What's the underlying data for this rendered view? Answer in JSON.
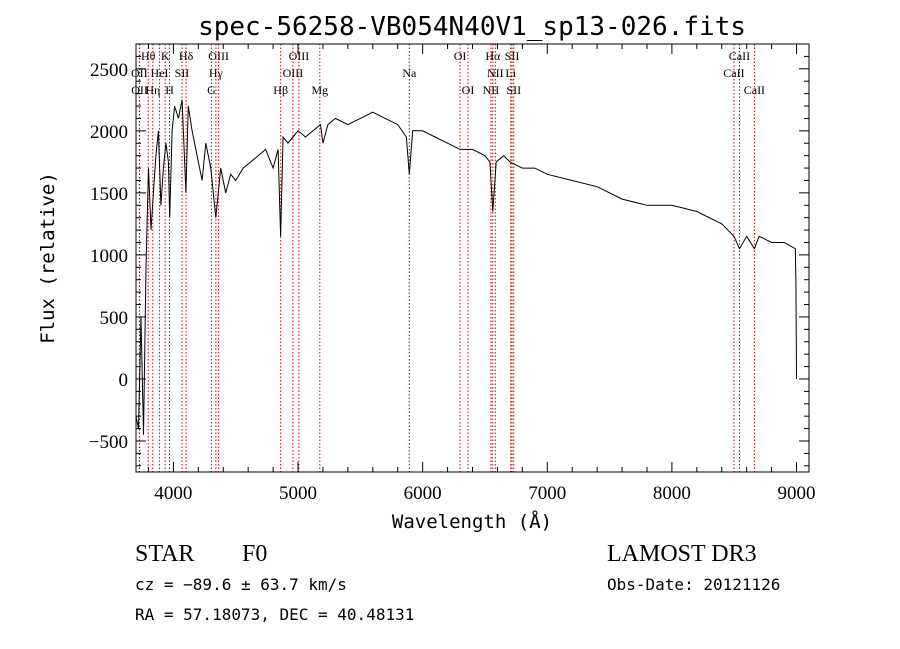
{
  "chart_data": {
    "type": "line",
    "title": "spec-56258-VB054N40V1_sp13-026.fits",
    "xlabel": "Wavelength (Å)",
    "ylabel": "Flux (relative)",
    "xlim": [
      3700,
      9100
    ],
    "ylim": [
      -750,
      2700
    ],
    "xticks": [
      4000,
      5000,
      6000,
      7000,
      8000,
      9000
    ],
    "yticks": [
      -500,
      0,
      500,
      1000,
      1500,
      2000,
      2500
    ],
    "xtick_labels": [
      "4000",
      "5000",
      "6000",
      "7000",
      "8000",
      "9000"
    ],
    "ytick_labels": [
      "−500",
      "0",
      "500",
      "1000",
      "1500",
      "2000",
      "2500"
    ],
    "series": [
      {
        "name": "spectrum",
        "x": [
          3700,
          3720,
          3740,
          3760,
          3780,
          3800,
          3820,
          3840,
          3860,
          3880,
          3900,
          3920,
          3940,
          3960,
          3970,
          3990,
          4010,
          4040,
          4070,
          4100,
          4120,
          4150,
          4190,
          4230,
          4260,
          4300,
          4340,
          4380,
          4420,
          4460,
          4500,
          4560,
          4620,
          4680,
          4740,
          4800,
          4840,
          4860,
          4880,
          4920,
          4960,
          5000,
          5060,
          5120,
          5180,
          5200,
          5240,
          5300,
          5400,
          5500,
          5600,
          5700,
          5800,
          5870,
          5893,
          5920,
          6000,
          6100,
          6200,
          6300,
          6400,
          6500,
          6540,
          6563,
          6590,
          6650,
          6700,
          6800,
          6900,
          7000,
          7200,
          7400,
          7600,
          7800,
          8000,
          8200,
          8400,
          8498,
          8542,
          8600,
          8662,
          8700,
          8800,
          8900,
          8990,
          8995,
          9000
        ],
        "values": [
          -300,
          -400,
          500,
          -450,
          900,
          1700,
          1200,
          1500,
          1800,
          2000,
          1400,
          1700,
          1900,
          1750,
          1300,
          2000,
          2200,
          2100,
          2250,
          1500,
          2200,
          2000,
          1800,
          1600,
          1900,
          1700,
          1300,
          1700,
          1500,
          1650,
          1600,
          1700,
          1750,
          1800,
          1850,
          1700,
          1850,
          1150,
          1950,
          1900,
          1950,
          2000,
          1950,
          2000,
          2050,
          1900,
          2050,
          2100,
          2050,
          2100,
          2150,
          2100,
          2050,
          1950,
          1650,
          2000,
          2000,
          1950,
          1900,
          1850,
          1850,
          1800,
          1750,
          1350,
          1750,
          1800,
          1750,
          1700,
          1700,
          1650,
          1600,
          1550,
          1450,
          1400,
          1400,
          1350,
          1250,
          1150,
          1050,
          1150,
          1050,
          1150,
          1100,
          1100,
          1050,
          800,
          0
        ]
      }
    ],
    "spectral_lines": [
      {
        "label": "Hθ",
        "x": 3798,
        "row": 0
      },
      {
        "label": "OII",
        "x": 3727,
        "row": 1
      },
      {
        "label": "OII",
        "x": 3729,
        "row": 2
      },
      {
        "label": "Hη",
        "x": 3835,
        "row": 2
      },
      {
        "label": "HeI",
        "x": 3889,
        "row": 1
      },
      {
        "label": "K",
        "x": 3934,
        "row": 0
      },
      {
        "label": "H",
        "x": 3969,
        "row": 2
      },
      {
        "label": "SII",
        "x": 4069,
        "row": 1
      },
      {
        "label": "Hδ",
        "x": 4102,
        "row": 0
      },
      {
        "label": "OIII",
        "x": 4363,
        "row": 0
      },
      {
        "label": "Hγ",
        "x": 4341,
        "row": 1
      },
      {
        "label": "G",
        "x": 4305,
        "row": 2
      },
      {
        "label": "Hβ",
        "x": 4861,
        "row": 2
      },
      {
        "label": "OIII",
        "x": 5007,
        "row": 0
      },
      {
        "label": "OIII",
        "x": 4959,
        "row": 1
      },
      {
        "label": "Mg",
        "x": 5175,
        "row": 2
      },
      {
        "label": "Na",
        "x": 5893,
        "row": 1
      },
      {
        "label": "OI",
        "x": 6300,
        "row": 0
      },
      {
        "label": "OI",
        "x": 6364,
        "row": 2
      },
      {
        "label": "Hα",
        "x": 6563,
        "row": 0
      },
      {
        "label": "NII",
        "x": 6583,
        "row": 1
      },
      {
        "label": "NII",
        "x": 6548,
        "row": 2
      },
      {
        "label": "SII",
        "x": 6717,
        "row": 0
      },
      {
        "label": "Li",
        "x": 6707,
        "row": 1
      },
      {
        "label": "SII",
        "x": 6731,
        "row": 2
      },
      {
        "label": "CaII",
        "x": 8542,
        "row": 0
      },
      {
        "label": "CaII",
        "x": 8498,
        "row": 1
      },
      {
        "label": "CaII",
        "x": 8662,
        "row": 2
      }
    ]
  },
  "footer": {
    "object_class": "STAR",
    "subclass": "F0",
    "survey": "LAMOST DR3",
    "redshift": "cz = −89.6 ± 63.7 km/s",
    "obs_date": "Obs-Date: 20121126",
    "coords": "RA =  57.18073, DEC =  40.48131"
  },
  "colors": {
    "line_marker": "#cc0000",
    "spectrum": "#000000",
    "axes": "#000000"
  }
}
